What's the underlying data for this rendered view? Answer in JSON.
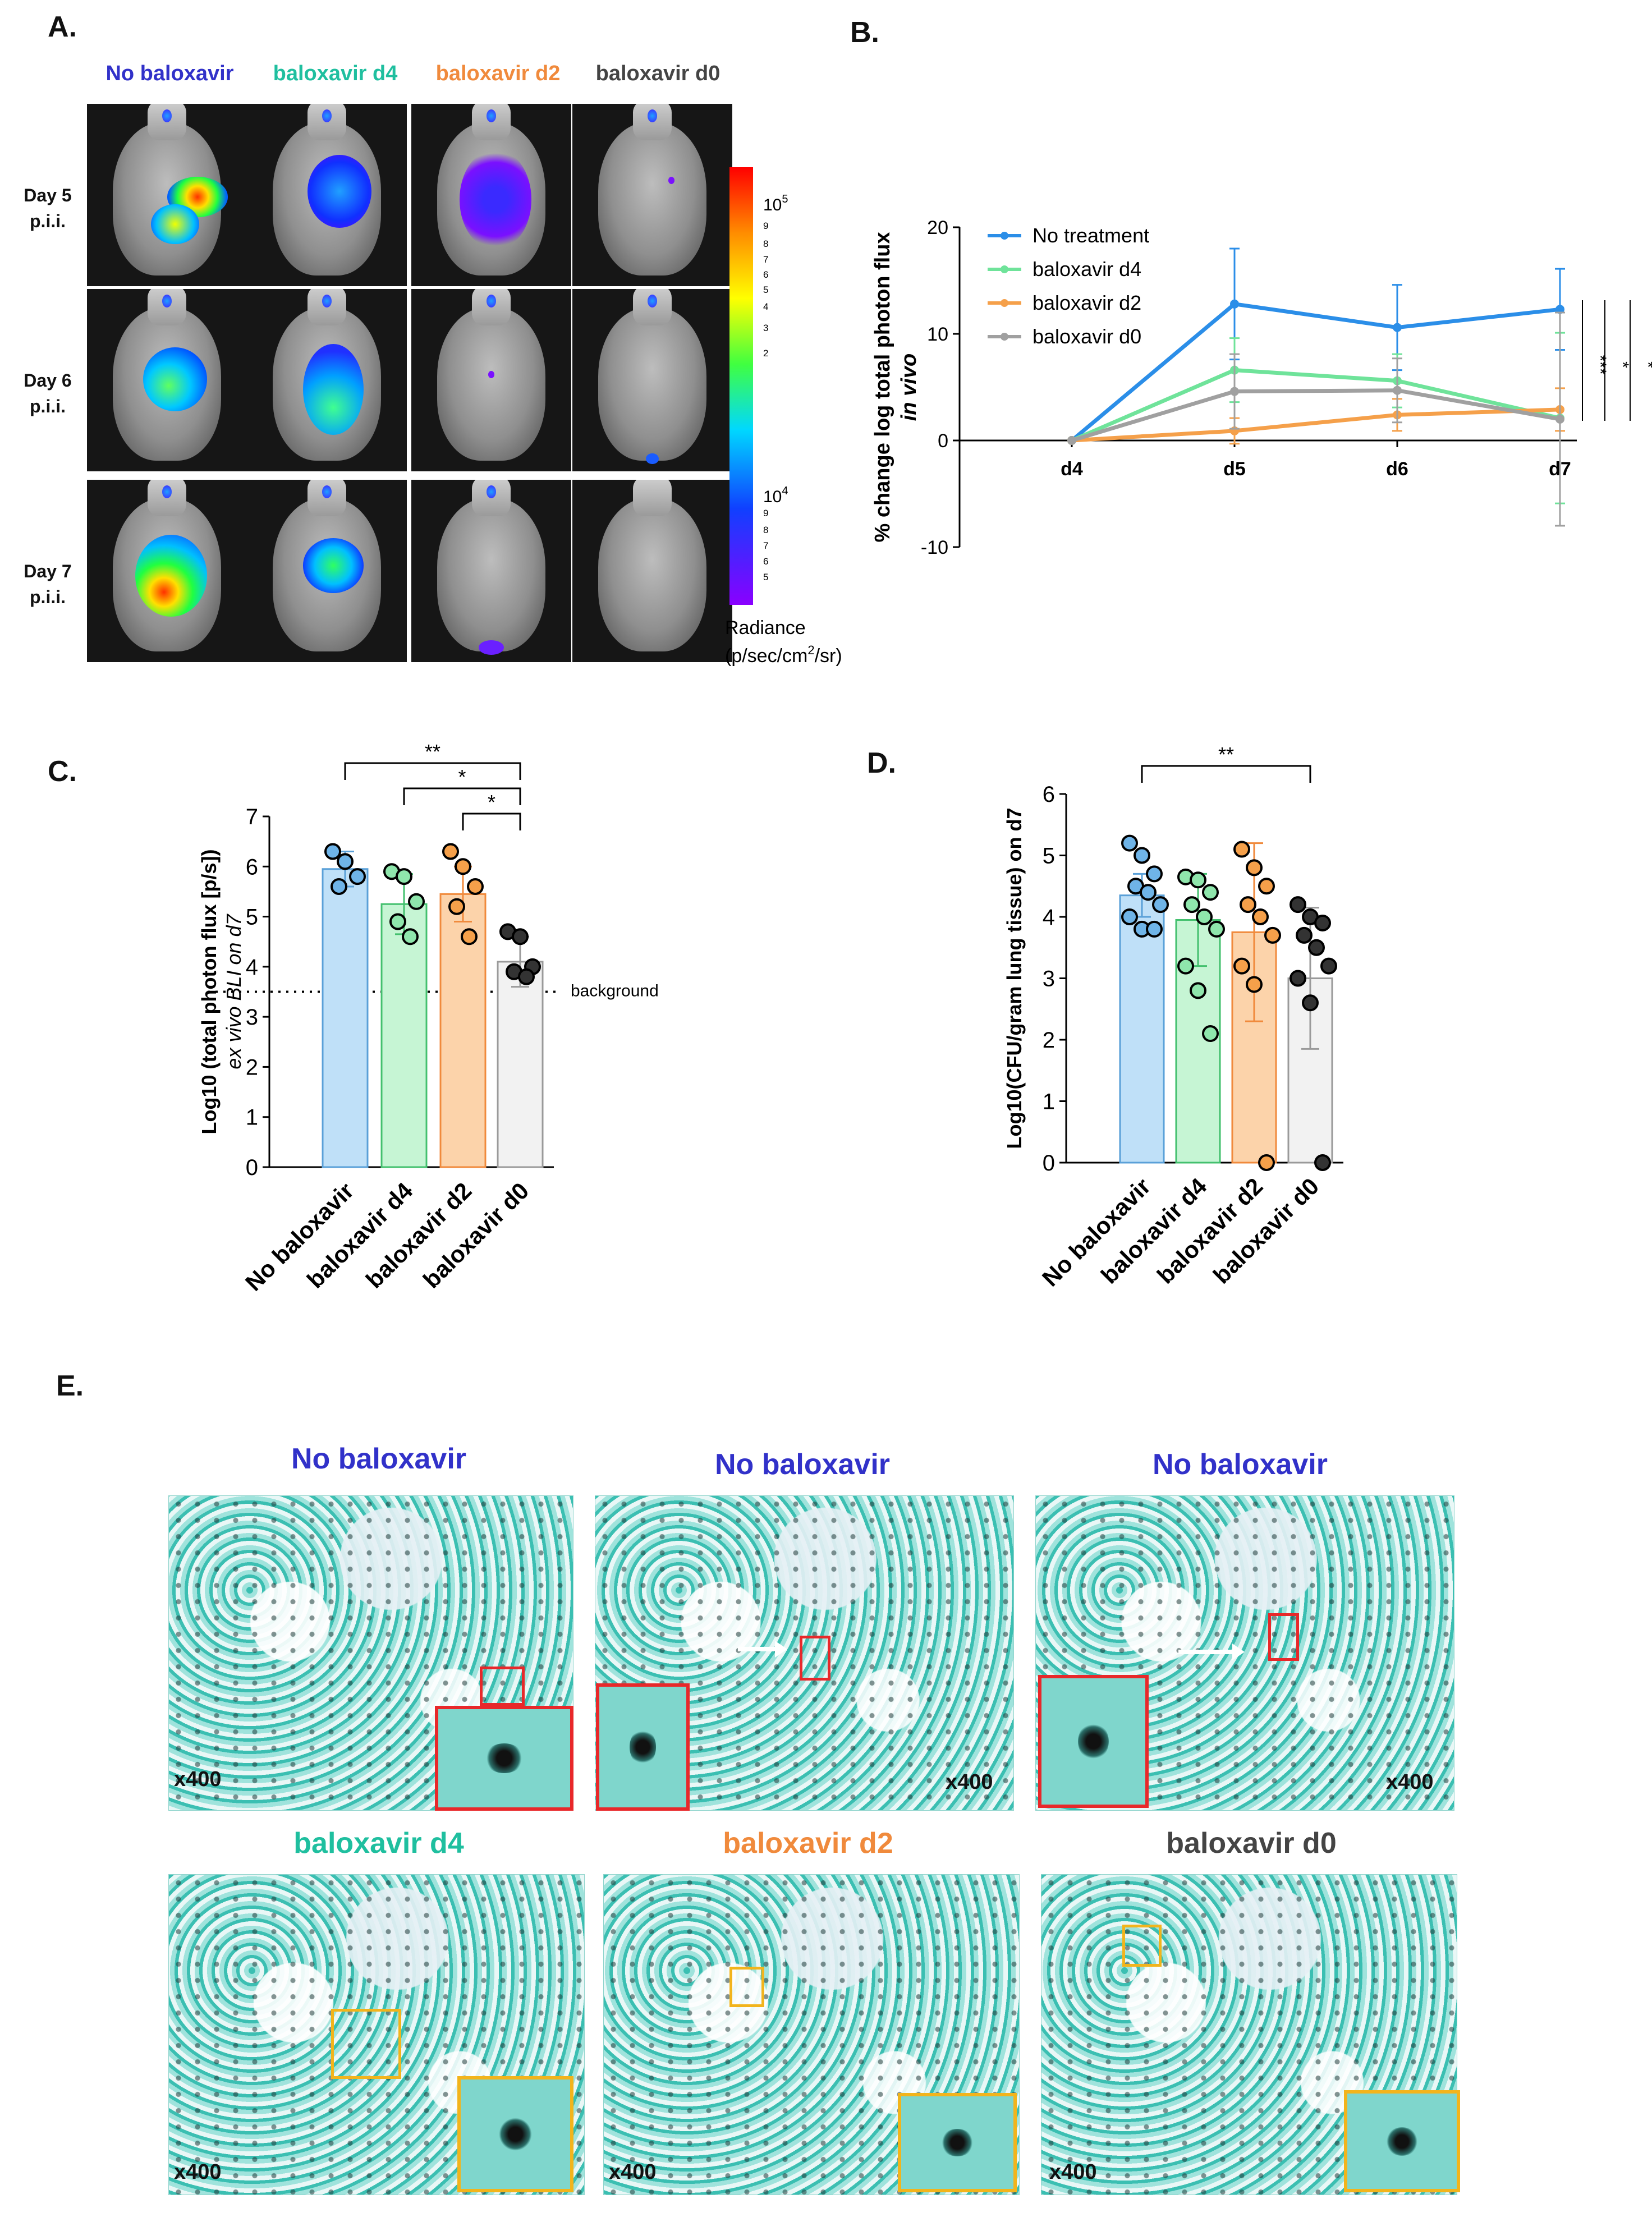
{
  "panels": {
    "A": "A.",
    "B": "B.",
    "C": "C.",
    "D": "D.",
    "E": "E."
  },
  "panelA": {
    "groups": [
      {
        "label": "No baloxavir",
        "color": "#3131c9"
      },
      {
        "label": "baloxavir d4",
        "color": "#1fbf9f"
      },
      {
        "label": "baloxavir d2",
        "color": "#f08a3c"
      },
      {
        "label": "baloxavir d0",
        "color": "#444444"
      }
    ],
    "rows": [
      {
        "line1": "Day 5",
        "line2": "p.i.i."
      },
      {
        "line1": "Day 6",
        "line2": "p.i.i."
      },
      {
        "line1": "Day 7",
        "line2": "p.i.i."
      }
    ],
    "colorbar": {
      "top_exp": "10",
      "top_sup": "5",
      "upper_ticks": [
        "9",
        "8",
        "7",
        "6",
        "5",
        "4",
        "3",
        "2"
      ],
      "mid_exp": "10",
      "mid_sup": "4",
      "lower_ticks": [
        "9",
        "8",
        "7",
        "6",
        "5"
      ],
      "title": "Radiance",
      "unit_pre": "(p/sec/cm",
      "unit_sup": "2",
      "unit_post": "/sr)"
    }
  },
  "chart_data": [
    {
      "panel": "B",
      "type": "line",
      "categories": [
        "d4",
        "d5",
        "d6",
        "d7"
      ],
      "ylabel_line1": "% change log total photon flux",
      "ylabel_line2": "in vivo",
      "ylim": [
        -10,
        20
      ],
      "yticks": [
        "-10",
        "0",
        "10",
        "20"
      ],
      "series": [
        {
          "name": "No treatment",
          "color": "#2b8ee8",
          "values": [
            0,
            12.8,
            10.6,
            12.3
          ],
          "err": [
            0,
            5.2,
            4.0,
            3.8
          ]
        },
        {
          "name": "baloxavir d4",
          "color": "#6fe39a",
          "values": [
            0,
            6.6,
            5.6,
            2.1
          ],
          "err": [
            0,
            3.0,
            2.5,
            8.0
          ]
        },
        {
          "name": "baloxavir d2",
          "color": "#f5a04a",
          "values": [
            0,
            0.9,
            2.4,
            2.9
          ],
          "err": [
            0,
            1.2,
            1.5,
            2.0
          ]
        },
        {
          "name": "baloxavir d0",
          "color": "#a0a0a0",
          "values": [
            0,
            4.6,
            4.7,
            2.0
          ],
          "err": [
            0,
            3.5,
            3.0,
            10.0
          ]
        }
      ],
      "significance": [
        "***",
        "*",
        "*"
      ]
    },
    {
      "panel": "C",
      "type": "bar",
      "categories": [
        "No baloxavir",
        "baloxavir d4",
        "baloxavir d2",
        "baloxavir d0"
      ],
      "values": [
        5.95,
        5.25,
        5.45,
        4.1
      ],
      "err": [
        0.35,
        0.6,
        0.55,
        0.5
      ],
      "points": [
        [
          6.3,
          6.1,
          5.8,
          5.6
        ],
        [
          5.9,
          5.8,
          5.3,
          4.9,
          4.6
        ],
        [
          6.3,
          6.0,
          5.6,
          5.2,
          4.6
        ],
        [
          4.7,
          4.6,
          4.0,
          3.9,
          3.8
        ]
      ],
      "bar_colors": [
        "#bfe0f8",
        "#c6f5d4",
        "#fcd3aa",
        "#f2f2f2"
      ],
      "edge_colors": [
        "#5aa0d8",
        "#43c06e",
        "#f08a3c",
        "#9a9a9a"
      ],
      "dot_colors": [
        "#6fb4e8",
        "#8fe6ac",
        "#f5a04a",
        "#333333"
      ],
      "ylabel_line1": "Log10 (total photon flux [p/s])",
      "ylabel_line2": "ex vivo BLI on d7",
      "ylim": [
        0,
        7
      ],
      "yticks": [
        "0",
        "1",
        "2",
        "3",
        "4",
        "5",
        "6",
        "7"
      ],
      "background_level": 3.5,
      "background_label": "background",
      "significance": [
        {
          "from": 0,
          "to": 3,
          "label": "**"
        },
        {
          "from": 1,
          "to": 3,
          "label": "*"
        },
        {
          "from": 2,
          "to": 3,
          "label": "*"
        }
      ]
    },
    {
      "panel": "D",
      "type": "bar",
      "categories": [
        "No baloxavir",
        "baloxavir d4",
        "baloxavir d2",
        "baloxavir d0"
      ],
      "values": [
        4.35,
        3.95,
        3.75,
        3.0
      ],
      "err": [
        0.35,
        0.75,
        1.45,
        1.15
      ],
      "points": [
        [
          5.2,
          5.0,
          4.7,
          4.5,
          4.4,
          4.2,
          4.0,
          3.8,
          3.8
        ],
        [
          4.65,
          4.6,
          4.4,
          4.2,
          4.0,
          3.8,
          3.2,
          2.8,
          2.1
        ],
        [
          5.1,
          4.8,
          4.5,
          4.2,
          4.0,
          3.7,
          3.2,
          2.9,
          0.0
        ],
        [
          4.2,
          4.0,
          3.9,
          3.7,
          3.5,
          3.2,
          3.0,
          2.6,
          0.0
        ]
      ],
      "bar_colors": [
        "#bfe0f8",
        "#c6f5d4",
        "#fcd3aa",
        "#f2f2f2"
      ],
      "edge_colors": [
        "#5aa0d8",
        "#43c06e",
        "#f08a3c",
        "#9a9a9a"
      ],
      "dot_colors": [
        "#6fb4e8",
        "#8fe6ac",
        "#f5a04a",
        "#333333"
      ],
      "ylabel_line1": "Log10(CFU/gram lung tissue) on d7",
      "ylim": [
        0,
        6
      ],
      "yticks": [
        "0",
        "1",
        "2",
        "3",
        "4",
        "5",
        "6"
      ],
      "significance": [
        {
          "from": 0,
          "to": 3,
          "label": "**"
        }
      ]
    }
  ],
  "panelE": {
    "titles": [
      {
        "label": "No baloxavir",
        "color": "#3131c9"
      },
      {
        "label": "No baloxavir",
        "color": "#3131c9"
      },
      {
        "label": "No baloxavir",
        "color": "#3131c9"
      },
      {
        "label": "baloxavir d4",
        "color": "#1fbf9f"
      },
      {
        "label": "baloxavir d2",
        "color": "#f08a3c"
      },
      {
        "label": "baloxavir d0",
        "color": "#444444"
      }
    ],
    "magnification": "x400",
    "roi_top": "#e8282a",
    "roi_bottom": "#f2b41c"
  }
}
